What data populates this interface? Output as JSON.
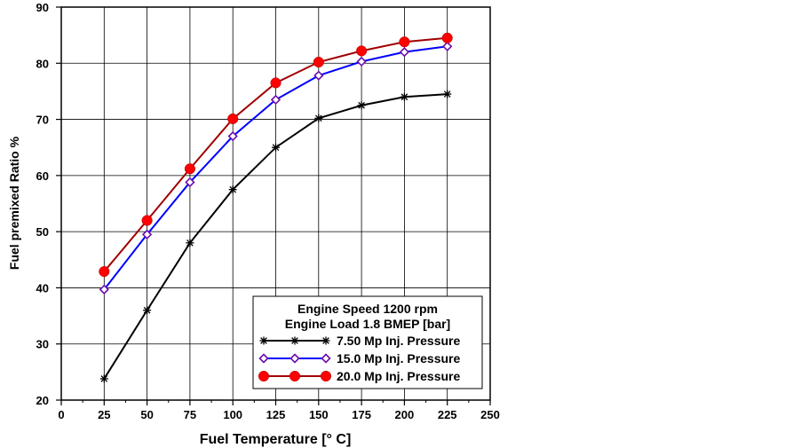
{
  "chart_data": {
    "type": "line",
    "xlabel": "Fuel Temperature [° C]",
    "ylabel": "Fuel premixed Ratio %",
    "xlim": [
      0,
      250
    ],
    "ylim": [
      20,
      90
    ],
    "xticks": [
      0,
      25,
      50,
      75,
      100,
      125,
      150,
      175,
      200,
      225,
      250
    ],
    "yticks": [
      20,
      30,
      40,
      50,
      60,
      70,
      80,
      90
    ],
    "grid": true,
    "legend_position": "bottom-right",
    "legend_title_lines": [
      "Engine Speed 1200 rpm",
      "Engine Load 1.8 BMEP [bar]"
    ],
    "x": [
      25,
      50,
      75,
      100,
      125,
      150,
      175,
      200,
      225
    ],
    "series": [
      {
        "name": "7.50 Mp Inj. Pressure",
        "color": "#000000",
        "marker": "asterisk",
        "values": [
          23.8,
          36,
          48,
          57.5,
          65,
          70.2,
          72.5,
          74,
          74.5
        ]
      },
      {
        "name": "15.0 Mp Inj. Pressure",
        "color": "#0000ff",
        "marker_color": "#6a0dad",
        "marker": "diamond",
        "values": [
          39.7,
          49.5,
          58.8,
          67,
          73.5,
          77.8,
          80.3,
          82,
          83
        ]
      },
      {
        "name": "20.0 Mp Inj. Pressure",
        "color": "#a00000",
        "marker_color": "#ff0000",
        "marker": "circle",
        "values": [
          42.9,
          52,
          61.2,
          70.1,
          76.5,
          80.2,
          82.2,
          83.8,
          84.5
        ]
      }
    ]
  }
}
